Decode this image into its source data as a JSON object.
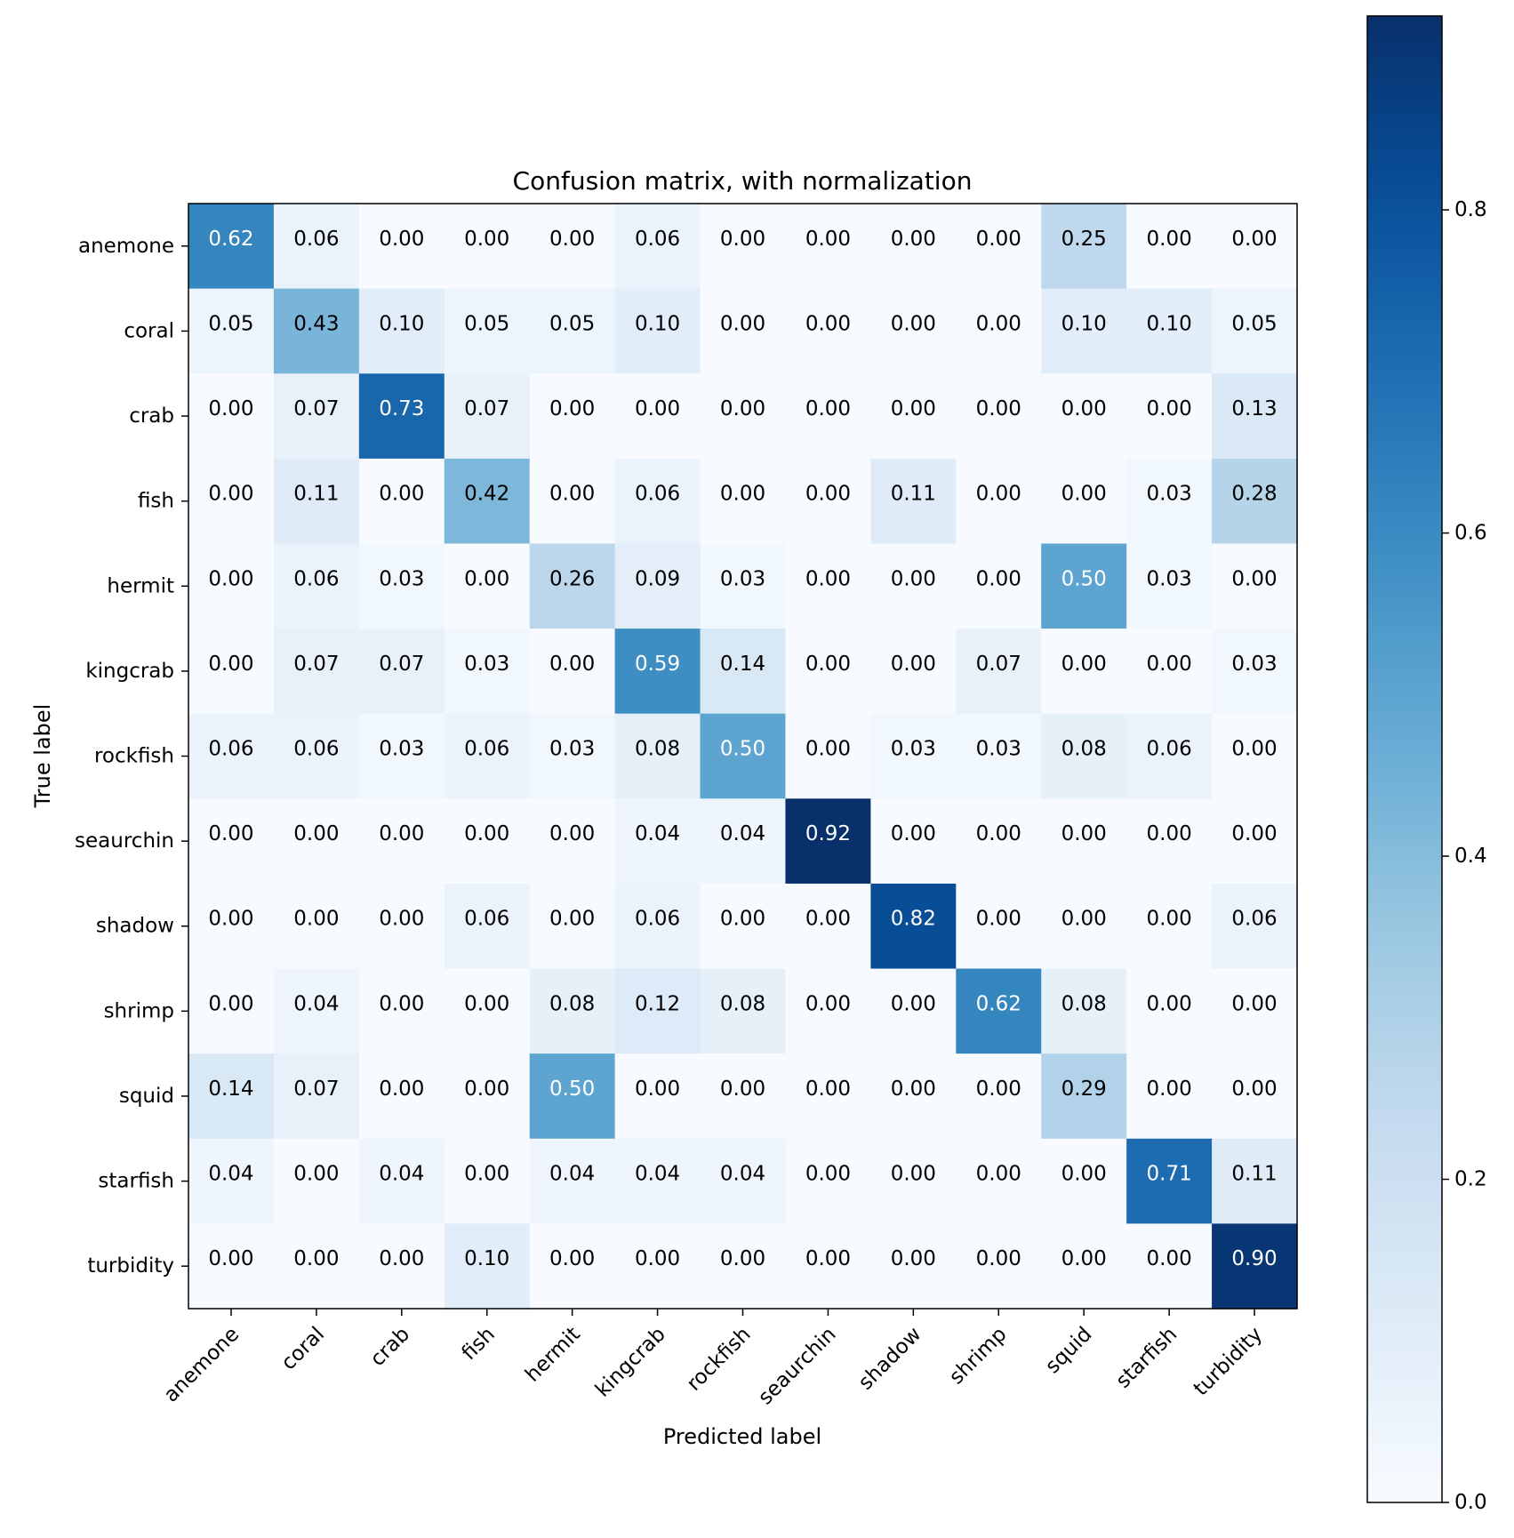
{
  "chart_data": {
    "type": "heatmap",
    "title": "Confusion matrix, with normalization",
    "xlabel": "Predicted label",
    "ylabel": "True label",
    "classes": [
      "anemone",
      "coral",
      "crab",
      "fish",
      "hermit",
      "kingcrab",
      "rockfish",
      "seaurchin",
      "shadow",
      "shrimp",
      "squid",
      "starfish",
      "turbidity"
    ],
    "matrix": [
      [
        0.62,
        0.06,
        0.0,
        0.0,
        0.0,
        0.06,
        0.0,
        0.0,
        0.0,
        0.0,
        0.25,
        0.0,
        0.0
      ],
      [
        0.05,
        0.43,
        0.1,
        0.05,
        0.05,
        0.1,
        0.0,
        0.0,
        0.0,
        0.0,
        0.1,
        0.1,
        0.05
      ],
      [
        0.0,
        0.07,
        0.73,
        0.07,
        0.0,
        0.0,
        0.0,
        0.0,
        0.0,
        0.0,
        0.0,
        0.0,
        0.13
      ],
      [
        0.0,
        0.11,
        0.0,
        0.42,
        0.0,
        0.06,
        0.0,
        0.0,
        0.11,
        0.0,
        0.0,
        0.03,
        0.28
      ],
      [
        0.0,
        0.06,
        0.03,
        0.0,
        0.26,
        0.09,
        0.03,
        0.0,
        0.0,
        0.0,
        0.5,
        0.03,
        0.0
      ],
      [
        0.0,
        0.07,
        0.07,
        0.03,
        0.0,
        0.59,
        0.14,
        0.0,
        0.0,
        0.07,
        0.0,
        0.0,
        0.03
      ],
      [
        0.06,
        0.06,
        0.03,
        0.06,
        0.03,
        0.08,
        0.5,
        0.0,
        0.03,
        0.03,
        0.08,
        0.06,
        0.0
      ],
      [
        0.0,
        0.0,
        0.0,
        0.0,
        0.0,
        0.04,
        0.04,
        0.92,
        0.0,
        0.0,
        0.0,
        0.0,
        0.0
      ],
      [
        0.0,
        0.0,
        0.0,
        0.06,
        0.0,
        0.06,
        0.0,
        0.0,
        0.82,
        0.0,
        0.0,
        0.0,
        0.06
      ],
      [
        0.0,
        0.04,
        0.0,
        0.0,
        0.08,
        0.12,
        0.08,
        0.0,
        0.0,
        0.62,
        0.08,
        0.0,
        0.0
      ],
      [
        0.14,
        0.07,
        0.0,
        0.0,
        0.5,
        0.0,
        0.0,
        0.0,
        0.0,
        0.0,
        0.29,
        0.0,
        0.0
      ],
      [
        0.04,
        0.0,
        0.04,
        0.0,
        0.04,
        0.04,
        0.04,
        0.0,
        0.0,
        0.0,
        0.0,
        0.71,
        0.11
      ],
      [
        0.0,
        0.0,
        0.0,
        0.1,
        0.0,
        0.0,
        0.0,
        0.0,
        0.0,
        0.0,
        0.0,
        0.0,
        0.9
      ]
    ],
    "colormap": "Blues",
    "vmin": 0.0,
    "vmax": 0.92,
    "colorbar": {
      "ticks": [
        0.0,
        0.2,
        0.4,
        0.6,
        0.8
      ],
      "tick_labels": [
        "0.0",
        "0.2",
        "0.4",
        "0.6",
        "0.8"
      ]
    },
    "text_threshold": 0.46,
    "colors": {
      "text_dark": "#000000",
      "text_light": "#ffffff",
      "axes": "#000000"
    }
  }
}
